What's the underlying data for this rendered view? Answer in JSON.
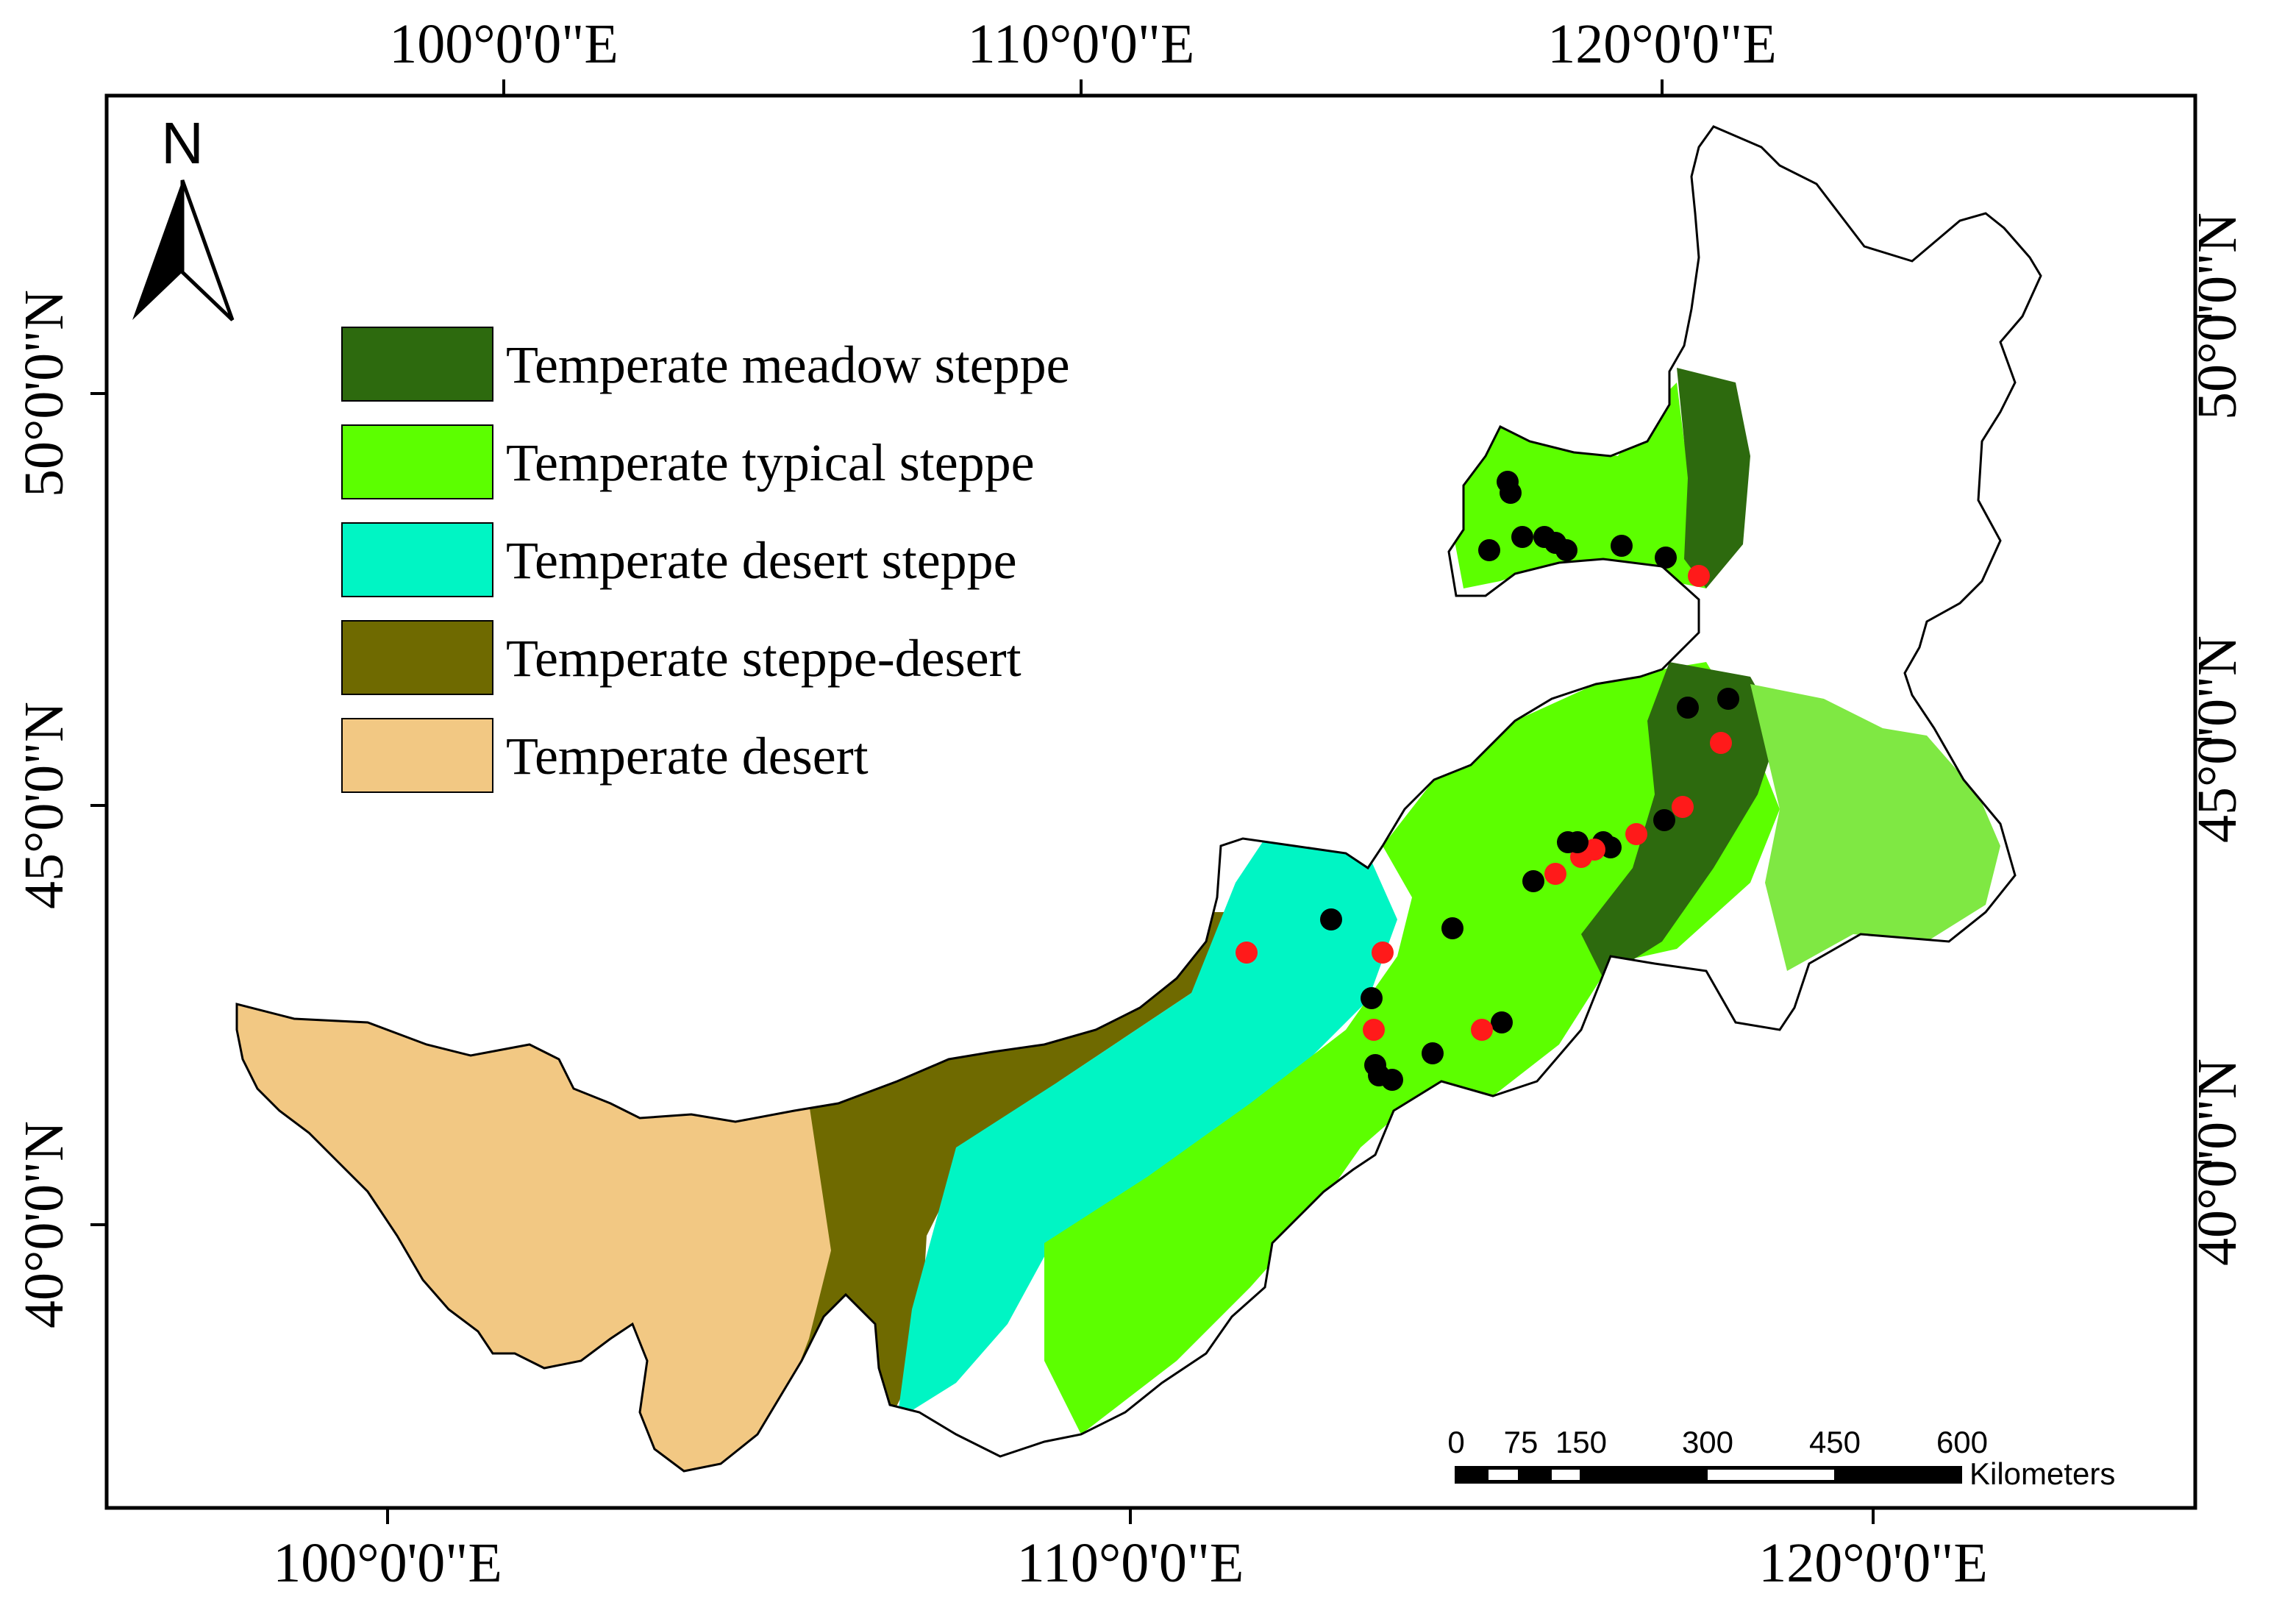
{
  "map": {
    "north_label": "N",
    "longitude_labels_top": [
      "100°0'0\"E",
      "110°0'0\"E",
      "120°0'0\"E"
    ],
    "longitude_labels_bottom": [
      "100°0'0\"E",
      "110°0'0\"E",
      "120°0'0\"E"
    ],
    "latitude_labels_left": [
      "50°0'0\"N",
      "45°0'0\"N",
      "40°0'0\"N"
    ],
    "latitude_labels_right": [
      "50°0'0\"N",
      "45°0'0\"N",
      "40°0'0\"N"
    ]
  },
  "legend": {
    "items": [
      {
        "label": "Temperate meadow steppe",
        "color": "#2d6a0e"
      },
      {
        "label": "Temperate typical steppe",
        "color": "#5cff00"
      },
      {
        "label": "Temperate desert steppe",
        "color": "#00f5c4"
      },
      {
        "label": "Temperate steppe-desert",
        "color": "#6f6a00"
      },
      {
        "label": "Temperate desert",
        "color": "#f2c883"
      }
    ]
  },
  "scale_bar": {
    "ticks": [
      "0",
      "75",
      "150",
      "300",
      "450",
      "600"
    ],
    "unit": "Kilometers"
  },
  "colors": {
    "site_black": "#000000",
    "site_red": "#ff1a1a",
    "boundary": "#000000",
    "frame": "#000000"
  }
}
